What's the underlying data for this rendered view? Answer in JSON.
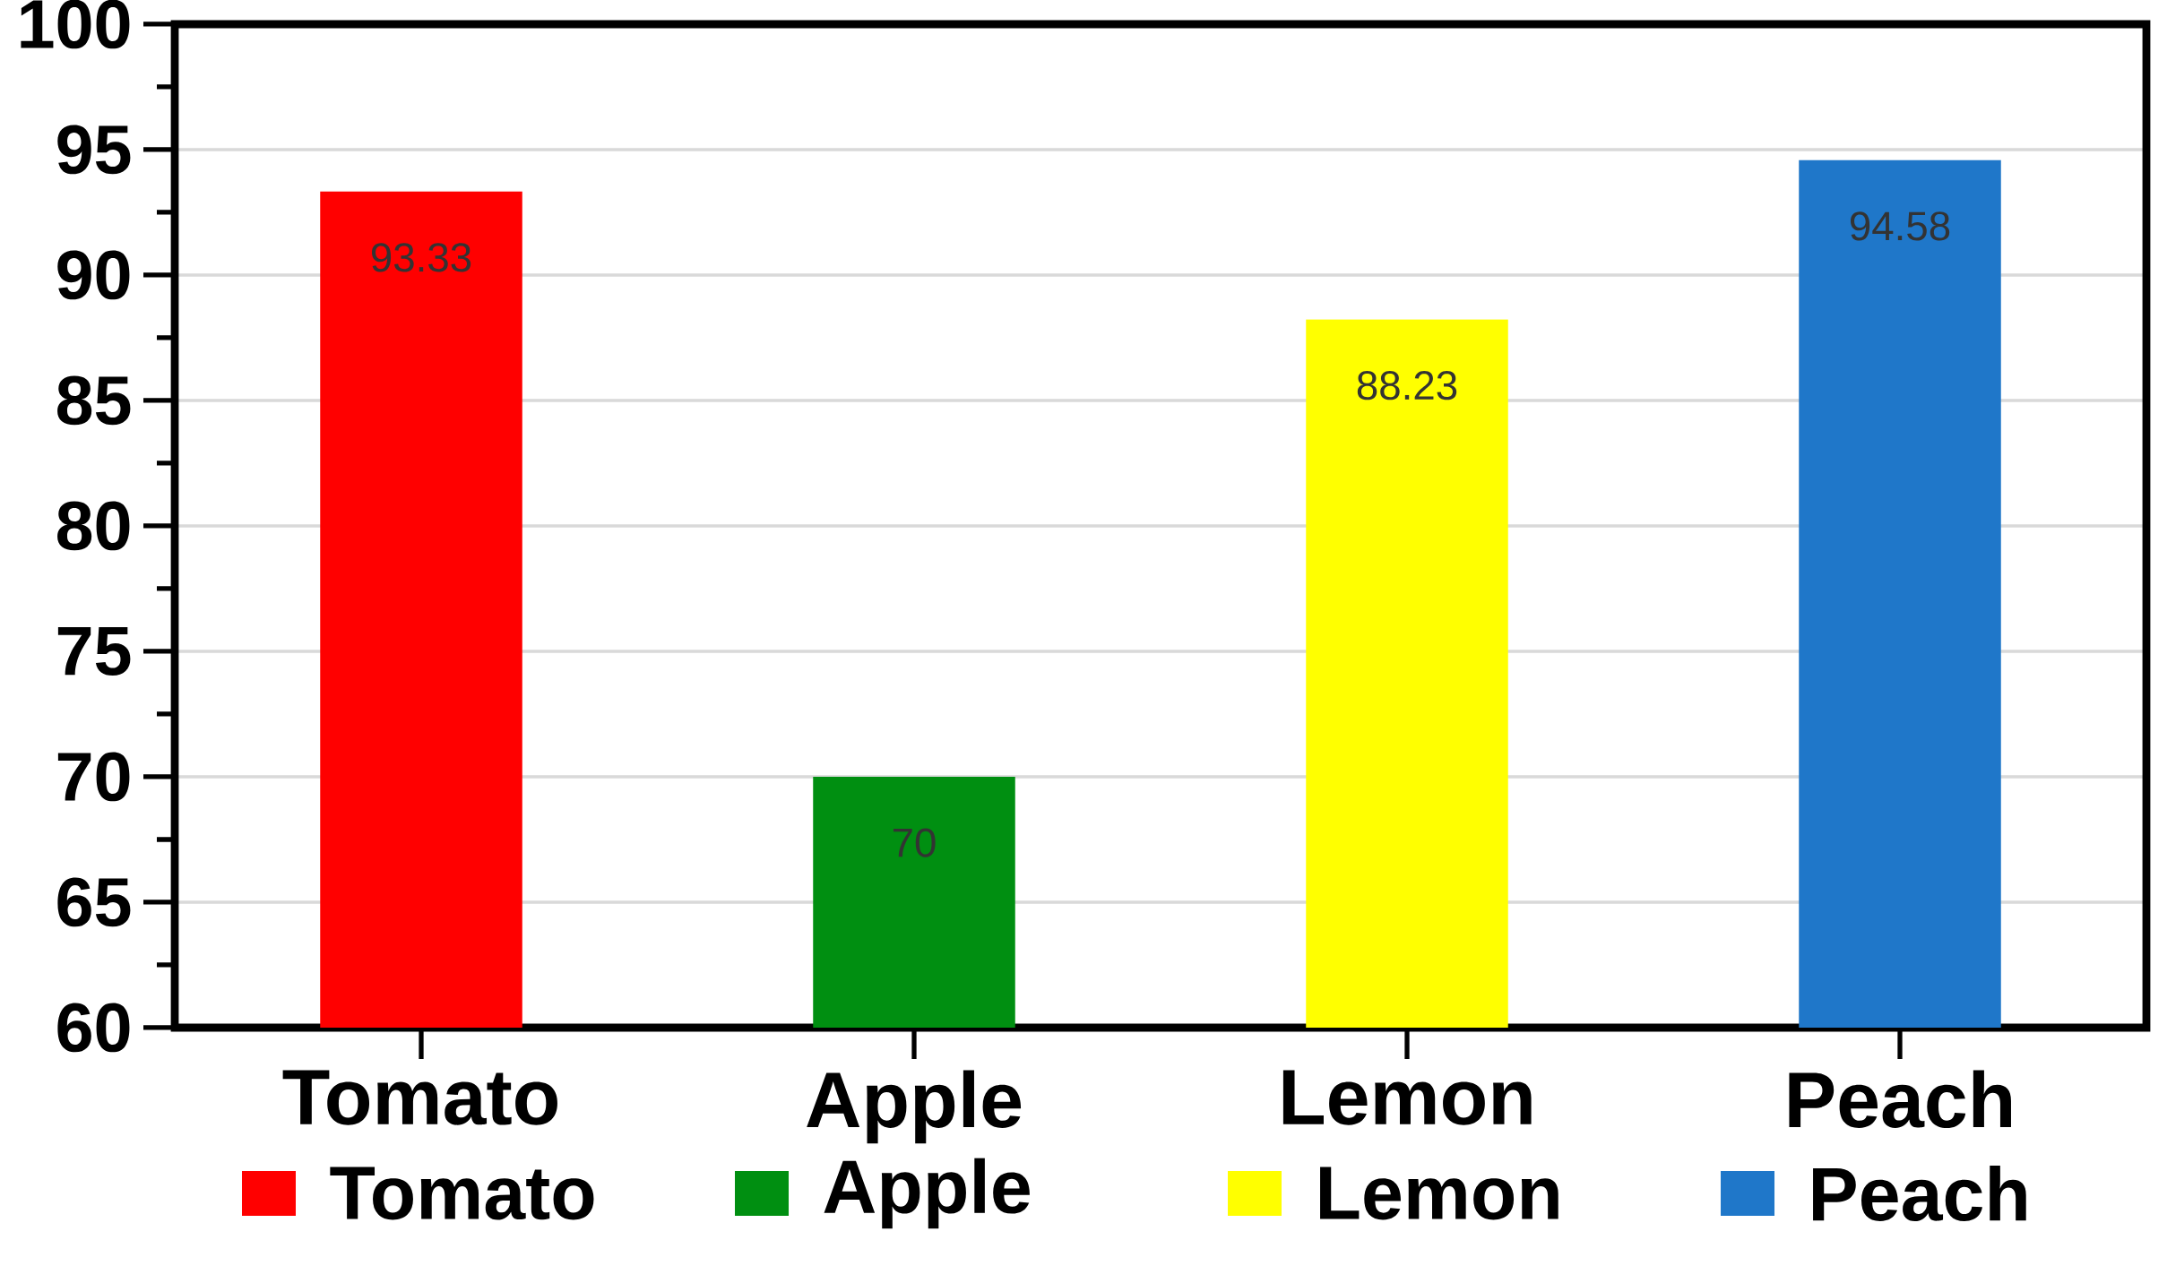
{
  "chart_data": {
    "type": "bar",
    "categories": [
      "Tomato",
      "Apple",
      "Lemon",
      "Peach"
    ],
    "series": [
      {
        "name": "Tomato",
        "color": "#ff0000",
        "values": [
          93.33,
          null,
          null,
          null
        ]
      },
      {
        "name": "Apple",
        "color": "#008f11",
        "values": [
          null,
          70,
          null,
          null
        ]
      },
      {
        "name": "Lemon",
        "color": "#ffff00",
        "values": [
          null,
          null,
          88.23,
          null
        ]
      },
      {
        "name": "Peach",
        "color": "#1f77c9",
        "values": [
          null,
          null,
          null,
          94.58
        ]
      }
    ],
    "ylim": [
      60,
      100
    ],
    "yticks": [
      60,
      65,
      70,
      75,
      80,
      85,
      90,
      95,
      100
    ],
    "grid": "y",
    "legend": "bottom",
    "data_labels": true
  }
}
